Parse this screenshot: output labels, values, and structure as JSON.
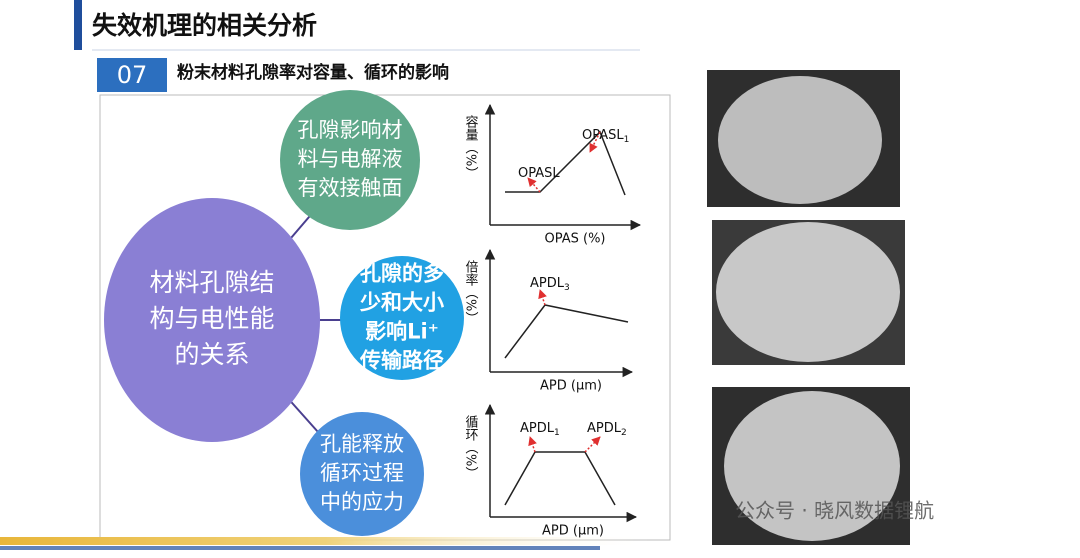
{
  "header": {
    "title": "失效机理的相关分析",
    "number": "07",
    "subtitle": "粉末材料孔隙率对容量、循环的影响"
  },
  "diagram": {
    "center": [
      "材料孔隙结",
      "构与电性能",
      "的关系"
    ],
    "nodes": [
      {
        "lines": [
          "孔隙影响材",
          "料与电解液",
          "有效接触面"
        ]
      },
      {
        "lines": [
          "孔隙的多",
          "少和大小",
          "影响Li⁺",
          "传输路径"
        ]
      },
      {
        "lines": [
          "孔能释放",
          "循环过程",
          "中的应力"
        ]
      }
    ]
  },
  "graphs": [
    {
      "y_label": "容量（%）",
      "x_label": "OPAS (%)",
      "annotations": [
        {
          "text": "OPASL"
        },
        {
          "text": "OPASL",
          "sub": "1"
        }
      ]
    },
    {
      "y_label": "倍率（%）",
      "x_label": "APD (μm)",
      "annotations": [
        {
          "text": "APDL",
          "sub": "3"
        }
      ]
    },
    {
      "y_label": "循环（%）",
      "x_label": "APD (μm)",
      "annotations": [
        {
          "text": "APDL",
          "sub": "1"
        },
        {
          "text": "APDL",
          "sub": "2"
        }
      ]
    }
  ],
  "watermark": "公众号 · 晓风数据锂航"
}
